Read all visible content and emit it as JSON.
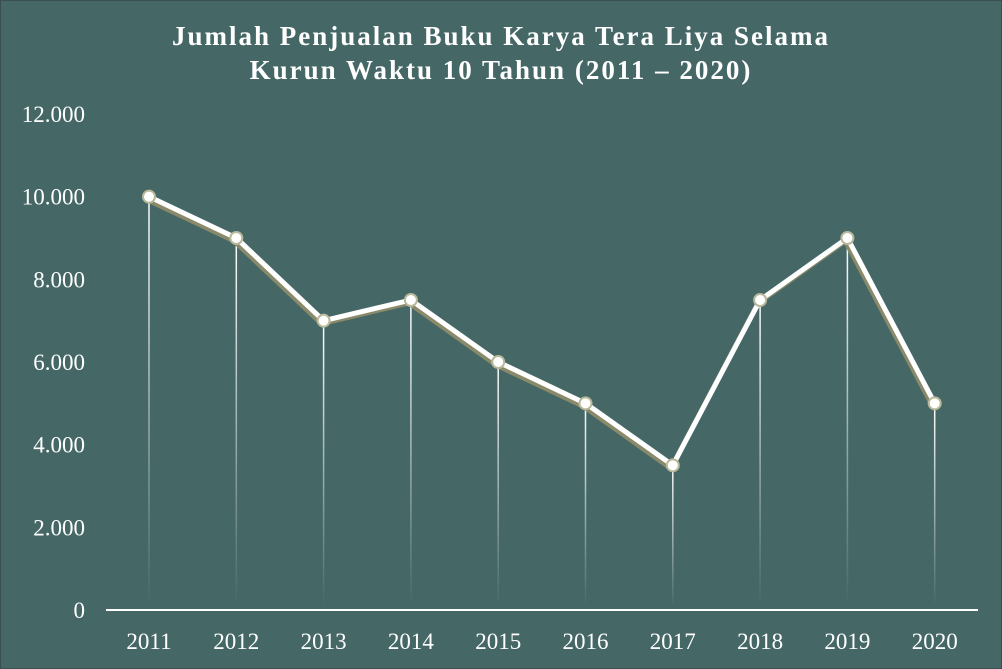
{
  "chart_data": {
    "type": "line",
    "title_lines": [
      "Jumlah Penjualan Buku Karya Tera Liya Selama",
      "Kurun Waktu 10 Tahun (2011 – 2020)"
    ],
    "categories": [
      "2011",
      "2012",
      "2013",
      "2014",
      "2015",
      "2016",
      "2017",
      "2018",
      "2019",
      "2020"
    ],
    "values": [
      10000,
      9000,
      7000,
      7500,
      6000,
      5000,
      3500,
      7500,
      9000,
      5000
    ],
    "ylim": [
      0,
      12000
    ],
    "y_ticks": [
      {
        "value": 0,
        "label": "0"
      },
      {
        "value": 2000,
        "label": "2.000"
      },
      {
        "value": 4000,
        "label": "4.000"
      },
      {
        "value": 6000,
        "label": "6.000"
      },
      {
        "value": 8000,
        "label": "8.000"
      },
      {
        "value": 10000,
        "label": "10.000"
      },
      {
        "value": 12000,
        "label": "12.000"
      }
    ],
    "grid": false,
    "drop_lines": true,
    "xlabel": "",
    "ylabel": ""
  },
  "colors": {
    "background": "#456867",
    "line": "#ffffff",
    "line_shadow": "#8a8a6a",
    "marker_fill": "#ffffff",
    "marker_stroke": "#b8b89a",
    "axis": "#ffffff",
    "text": "#ffffff"
  }
}
